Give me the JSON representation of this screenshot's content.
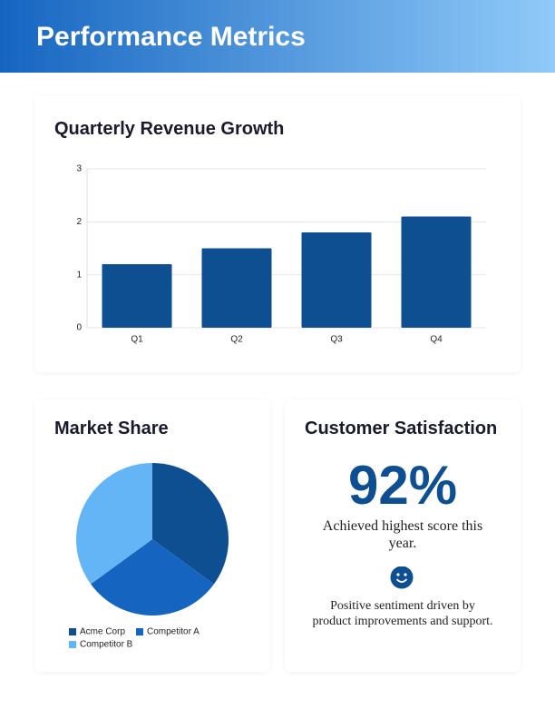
{
  "header": {
    "title": "Performance Metrics"
  },
  "chart_data": [
    {
      "type": "bar",
      "title": "Quarterly Revenue Growth",
      "categories": [
        "Q1",
        "Q2",
        "Q3",
        "Q4"
      ],
      "values": [
        1.2,
        1.5,
        1.8,
        2.1
      ],
      "color": "#0d4f91",
      "ylim": [
        0,
        3
      ],
      "yticks": [
        0,
        1,
        2,
        3
      ],
      "grid": true
    },
    {
      "type": "pie",
      "title": "Market Share",
      "series": [
        {
          "name": "Acme Corp",
          "color": "#0d4f91",
          "values": [
            35
          ]
        },
        {
          "name": "Competitor A",
          "color": "#1565c0",
          "values": [
            30
          ]
        },
        {
          "name": "Competitor B",
          "color": "#64b5f6",
          "values": [
            35
          ]
        }
      ]
    }
  ],
  "satisfaction": {
    "title": "Customer Satisfaction",
    "score": "92%",
    "subtitle": "Achieved highest score this year.",
    "note": "Positive sentiment driven by product improvements and support."
  }
}
